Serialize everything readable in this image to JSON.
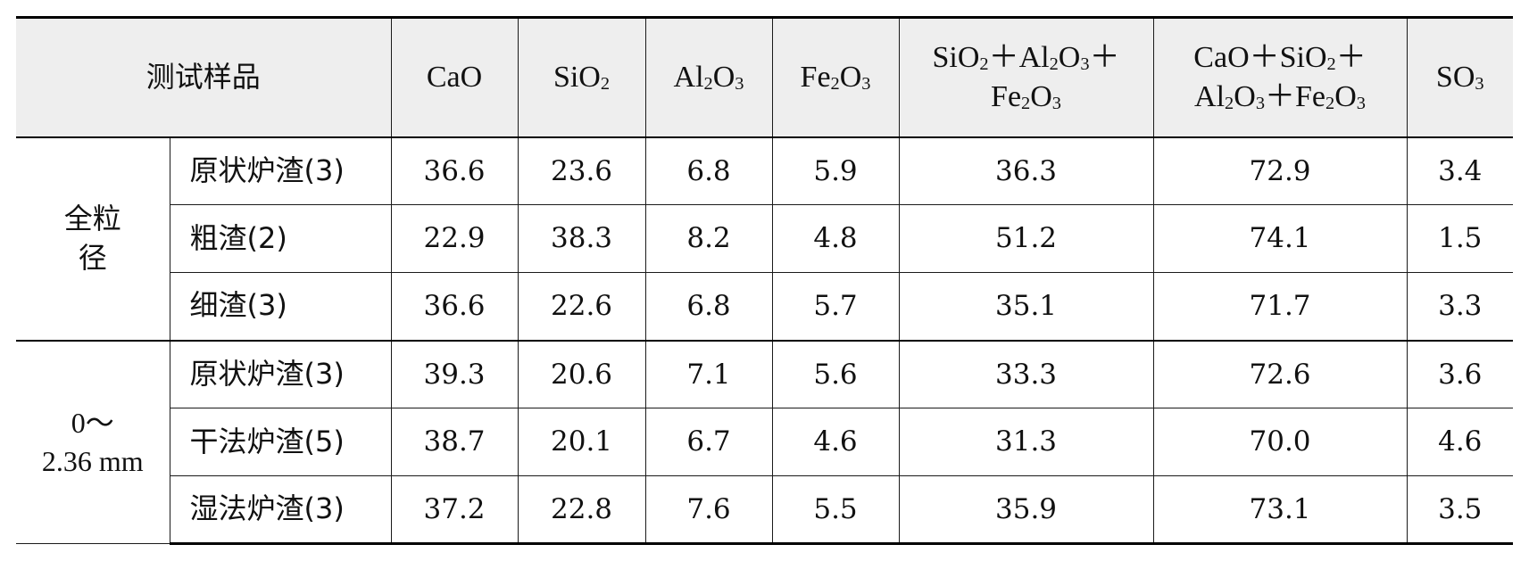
{
  "table": {
    "header": {
      "sample": "测试样品",
      "cao": "CaO",
      "sio2": {
        "main": "SiO",
        "sub": "2"
      },
      "al2o3": {
        "a": "Al",
        "a_sub": "2",
        "b": "O",
        "b_sub": "3"
      },
      "fe2o3": {
        "a": "Fe",
        "a_sub": "2",
        "b": "O",
        "b_sub": "3"
      },
      "sum3": {
        "l1_a": "SiO",
        "l1_a_sub": "2",
        "l1_b": "＋Al",
        "l1_b_sub": "2",
        "l1_c": "O",
        "l1_c_sub": "3",
        "l1_d": "＋",
        "l2_a": "Fe",
        "l2_a_sub": "2",
        "l2_b": "O",
        "l2_b_sub": "3"
      },
      "sum4": {
        "l1_a": "CaO＋SiO",
        "l1_a_sub": "2",
        "l1_b": "＋",
        "l2_a": "Al",
        "l2_a_sub": "2",
        "l2_b": "O",
        "l2_b_sub": "3",
        "l2_c": "＋Fe",
        "l2_c_sub": "2",
        "l2_d": "O",
        "l2_d_sub": "3"
      },
      "so3": {
        "main": "SO",
        "sub": "3"
      }
    },
    "groups": [
      {
        "label_line1": "全粒",
        "label_line2": "径",
        "rows": [
          {
            "sample": "原状炉渣(3)",
            "values": [
              "36.6",
              "23.6",
              "6.8",
              "5.9",
              "36.3",
              "72.9",
              "3.4"
            ]
          },
          {
            "sample": "粗渣(2)",
            "values": [
              "22.9",
              "38.3",
              "8.2",
              "4.8",
              "51.2",
              "74.1",
              "1.5"
            ]
          },
          {
            "sample": "细渣(3)",
            "values": [
              "36.6",
              "22.6",
              "6.8",
              "5.7",
              "35.1",
              "71.7",
              "3.3"
            ]
          }
        ]
      },
      {
        "label_line1": "0～",
        "label_line2": "2.36 mm",
        "rows": [
          {
            "sample": "原状炉渣(3)",
            "values": [
              "39.3",
              "20.6",
              "7.1",
              "5.6",
              "33.3",
              "72.6",
              "3.6"
            ]
          },
          {
            "sample": "干法炉渣(5)",
            "values": [
              "38.7",
              "20.1",
              "6.7",
              "4.6",
              "31.3",
              "70.0",
              "4.6"
            ]
          },
          {
            "sample": "湿法炉渣(3)",
            "values": [
              "37.2",
              "22.8",
              "7.6",
              "5.5",
              "35.9",
              "73.1",
              "3.5"
            ]
          }
        ]
      }
    ]
  }
}
